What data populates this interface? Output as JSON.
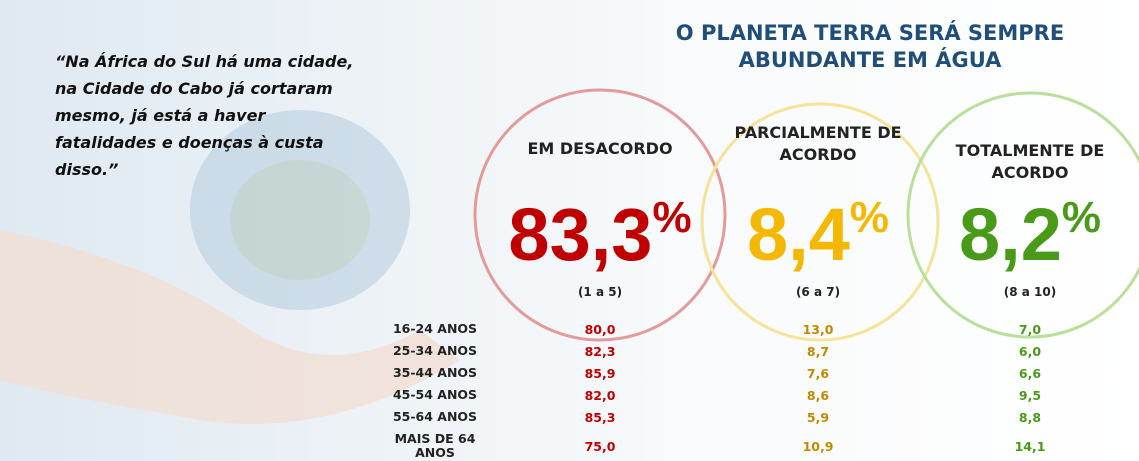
{
  "header": {
    "title": "O PLANETA TERRA SERÁ SEMPRE ABUNDANTE EM ÁGUA"
  },
  "quote": "“Na África do Sul há uma cidade, na Cidade do Cabo já cortaram mesmo, já está a haver fatalidades e doenças à custa disso.”",
  "groups": [
    {
      "label": "EM DESACORDO",
      "value": "83,3",
      "unit": "%",
      "range": "(1 a 5)"
    },
    {
      "label": "PARCIALMENTE DE ACORDO",
      "value": "8,4",
      "unit": "%",
      "range": "(6 a 7)"
    },
    {
      "label": "TOTALMENTE DE ACORDO",
      "value": "8,2",
      "unit": "%",
      "range": "(8 a 10)"
    }
  ],
  "table": {
    "rows": [
      [
        "16-24 ANOS",
        "80,0",
        "13,0",
        "7,0"
      ],
      [
        "25-34 ANOS",
        "82,3",
        "8,7",
        "6,0"
      ],
      [
        "35-44 ANOS",
        "85,9",
        "7,6",
        "6,6"
      ],
      [
        "45-54 ANOS",
        "82,0",
        "8,6",
        "9,5"
      ],
      [
        "55-64 ANOS",
        "85,3",
        "5,9",
        "8,8"
      ],
      [
        "MAIS DE 64 ANOS",
        "75,0",
        "10,9",
        "14,1"
      ]
    ]
  }
}
